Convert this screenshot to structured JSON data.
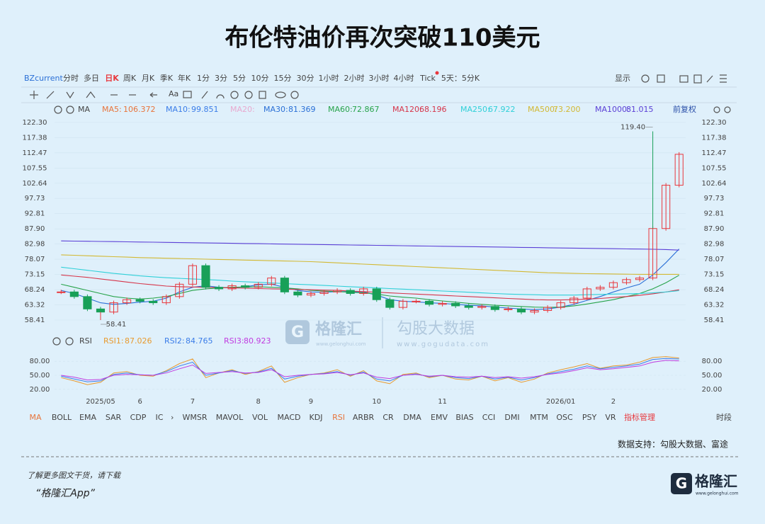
{
  "title": "布伦特油价再次突破110美元",
  "toolbar": {
    "symbol": "BZcurrent",
    "periods": [
      "分时",
      "多日",
      "日K",
      "周K",
      "月K",
      "季K",
      "年K",
      "1分",
      "3分",
      "5分",
      "10分",
      "15分",
      "30分",
      "1小时",
      "2小时",
      "3小时",
      "4小时",
      "Tick",
      "5天：5分K"
    ],
    "display": "显示",
    "font_button": "Aa"
  },
  "legend_bar": {
    "indicator": "MA",
    "adjust": "前复权"
  },
  "chart_data": [
    {
      "type": "candlestick",
      "ylim": [
        52,
        124.1
      ],
      "yticks": [
        58.41,
        63.32,
        68.24,
        73.15,
        78.07,
        82.98,
        {
          "value": 87.9,
          "label": "87.90"
        },
        92.81,
        97.73,
        102.64,
        107.55,
        112.47,
        117.38,
        {
          "value": 122.3,
          "label": "122.30"
        }
      ],
      "grid": true,
      "values": [
        67.5,
        66,
        62,
        61,
        64,
        65,
        64.5,
        64,
        66,
        70,
        76,
        69,
        68.5,
        69.5,
        69,
        70,
        72,
        67.5,
        66.5,
        67,
        67.5,
        68,
        67,
        68.5,
        65,
        62.5,
        64.5,
        64.5,
        63.5,
        63.8,
        63,
        62.5,
        62.8,
        61.8,
        62,
        61,
        61.5,
        62.5,
        64,
        65.5,
        68.5,
        69,
        70.5,
        71.5,
        72,
        88,
        102,
        112
      ],
      "up_color": "#e8383d",
      "down_color": "#18a058",
      "annotations": [
        {
          "index": 45,
          "value": 119.4,
          "label": "119.40"
        },
        {
          "index": 3,
          "value": 58.41,
          "label": "58.41"
        }
      ],
      "series": [
        {
          "name": "MA5:",
          "color": "#e8743b",
          "legend_value": "106.372"
        },
        {
          "name": "MA10:",
          "color": "#3b7de8",
          "legend_value": "99.851"
        },
        {
          "name": "MA20:",
          "color": "#e8a9cf"
        },
        {
          "name": "MA30:",
          "color": "#2a6fd6",
          "legend_value": "81.369",
          "values": [
            68.0,
            67.0,
            65.5,
            64.0,
            63.5,
            63.8,
            64.2,
            64.5,
            65.5,
            67.5,
            69.0,
            69.5,
            69.0,
            68.8,
            69.2,
            69.8,
            70.0,
            69.0,
            68.0,
            67.5,
            67.4,
            67.6,
            67.6,
            67.5,
            66.5,
            65.0,
            64.5,
            64.3,
            64.0,
            63.8,
            63.5,
            63.2,
            63.0,
            62.6,
            62.3,
            62.0,
            61.8,
            62.0,
            62.6,
            63.5,
            64.8,
            66.0,
            67.5,
            68.8,
            70.0,
            73.0,
            77.0,
            81.4
          ]
        },
        {
          "name": "MA60:",
          "color": "#27a34a",
          "legend_value": "72.867",
          "values": [
            70.0,
            69.0,
            68.0,
            67.0,
            66.0,
            65.5,
            65.2,
            65.5,
            66.0,
            67.0,
            68.0,
            68.5,
            68.8,
            69.0,
            69.1,
            69.2,
            69.0,
            68.8,
            68.5,
            68.0,
            67.8,
            67.6,
            67.4,
            67.2,
            66.8,
            66.2,
            65.8,
            65.5,
            65.0,
            64.6,
            64.2,
            63.8,
            63.5,
            63.2,
            63.0,
            62.8,
            62.6,
            62.5,
            62.6,
            63.0,
            63.6,
            64.3,
            65.0,
            66.0,
            67.0,
            68.5,
            70.5,
            72.9
          ]
        },
        {
          "name": "MA120:",
          "color": "#d6354a",
          "legend_value": "68.196",
          "values": [
            73.0,
            72.6,
            72.2,
            71.7,
            71.2,
            70.7,
            70.2,
            69.8,
            69.4,
            69.2,
            69.1,
            69.0,
            68.9,
            68.8,
            68.7,
            68.6,
            68.5,
            68.4,
            68.3,
            68.2,
            68.1,
            68.0,
            67.8,
            67.6,
            67.4,
            67.2,
            67.0,
            66.8,
            66.6,
            66.4,
            66.2,
            66.0,
            65.8,
            65.6,
            65.4,
            65.2,
            65.0,
            64.9,
            64.9,
            65.0,
            65.2,
            65.4,
            65.7,
            66.0,
            66.4,
            66.9,
            67.5,
            68.2
          ]
        },
        {
          "name": "MA250:",
          "color": "#2fd0d8",
          "legend_value": "67.922",
          "values": [
            75.5,
            75.0,
            74.5,
            74.0,
            73.5,
            73.1,
            72.7,
            72.4,
            72.1,
            71.9,
            71.7,
            71.5,
            71.3,
            71.0,
            70.8,
            70.6,
            70.4,
            70.2,
            70.0,
            69.8,
            69.6,
            69.4,
            69.2,
            69.0,
            68.8,
            68.6,
            68.4,
            68.2,
            68.0,
            67.8,
            67.6,
            67.4,
            67.2,
            67.0,
            66.8,
            66.7,
            66.6,
            66.5,
            66.5,
            66.5,
            66.6,
            66.7,
            66.8,
            66.9,
            67.0,
            67.2,
            67.5,
            67.9
          ]
        },
        {
          "name": "MA500:",
          "color": "#d2b832",
          "legend_value": "73.200",
          "values": [
            79.5,
            79.35,
            79.2,
            79.05,
            78.9,
            78.75,
            78.6,
            78.5,
            78.4,
            78.3,
            78.2,
            78.1,
            78.0,
            77.9,
            77.8,
            77.7,
            77.6,
            77.5,
            77.4,
            77.3,
            77.1,
            76.9,
            76.7,
            76.5,
            76.3,
            76.1,
            75.9,
            75.7,
            75.5,
            75.3,
            75.1,
            74.9,
            74.7,
            74.5,
            74.3,
            74.1,
            73.9,
            73.7,
            73.6,
            73.5,
            73.4,
            73.35,
            73.3,
            73.25,
            73.2,
            73.2,
            73.2,
            73.2
          ]
        },
        {
          "name": "MA1000:",
          "color": "#5b3fd6",
          "legend_value": "81.015",
          "values": [
            84.0,
            83.94,
            83.88,
            83.82,
            83.76,
            83.7,
            83.64,
            83.58,
            83.52,
            83.46,
            83.4,
            83.34,
            83.28,
            83.22,
            83.16,
            83.1,
            83.04,
            82.98,
            82.92,
            82.86,
            82.8,
            82.74,
            82.68,
            82.62,
            82.56,
            82.5,
            82.44,
            82.38,
            82.32,
            82.26,
            82.2,
            82.14,
            82.08,
            82.02,
            81.96,
            81.9,
            81.84,
            81.78,
            81.72,
            81.66,
            81.6,
            81.54,
            81.48,
            81.42,
            81.36,
            81.3,
            81.2,
            81.02
          ]
        }
      ]
    },
    {
      "type": "line",
      "indicator": "RSI",
      "ylim": [
        0,
        100
      ],
      "yticks": [
        {
          "value": 20,
          "label": "20.00"
        },
        {
          "value": 50,
          "label": "50.00"
        },
        {
          "value": 80,
          "label": "80.00"
        }
      ],
      "grid": true,
      "categories": [
        null,
        null,
        null,
        "2025/05",
        null,
        null,
        "6",
        null,
        null,
        null,
        "7",
        null,
        null,
        null,
        null,
        "8",
        null,
        null,
        null,
        "9",
        null,
        null,
        null,
        null,
        "10",
        null,
        null,
        null,
        null,
        "11",
        null,
        null,
        null,
        null,
        null,
        null,
        null,
        null,
        "2026/01",
        null,
        null,
        null,
        "2",
        null,
        null,
        null,
        null,
        null
      ],
      "series": [
        {
          "name": "RSI1:",
          "color": "#e89a2e",
          "legend_value": "87.026",
          "values": [
            45,
            38,
            30,
            35,
            55,
            58,
            50,
            48,
            60,
            75,
            85,
            45,
            55,
            62,
            52,
            58,
            70,
            35,
            45,
            52,
            55,
            62,
            48,
            60,
            38,
            32,
            52,
            55,
            45,
            50,
            42,
            40,
            48,
            38,
            45,
            35,
            42,
            55,
            62,
            68,
            75,
            65,
            70,
            72,
            78,
            88,
            90,
            87
          ]
        },
        {
          "name": "RSI2:",
          "color": "#3b7de8",
          "legend_value": "84.765",
          "values": [
            48,
            42,
            36,
            38,
            52,
            55,
            51,
            50,
            58,
            70,
            78,
            50,
            55,
            60,
            54,
            57,
            65,
            42,
            48,
            52,
            54,
            58,
            50,
            57,
            42,
            38,
            50,
            53,
            47,
            50,
            45,
            43,
            48,
            42,
            46,
            40,
            45,
            53,
            58,
            63,
            70,
            64,
            67,
            70,
            74,
            84,
            86,
            84.8
          ]
        },
        {
          "name": "RSI3:",
          "color": "#c03be0",
          "legend_value": "80.923",
          "values": [
            50,
            46,
            40,
            41,
            50,
            52,
            51,
            50,
            55,
            64,
            72,
            54,
            56,
            58,
            55,
            56,
            62,
            47,
            50,
            52,
            53,
            56,
            51,
            55,
            46,
            43,
            50,
            52,
            48,
            50,
            47,
            46,
            48,
            45,
            47,
            44,
            47,
            52,
            55,
            60,
            66,
            62,
            64,
            67,
            70,
            78,
            82,
            80.9
          ]
        }
      ]
    }
  ],
  "indicator_tabs": [
    "MA",
    "BOLL",
    "EMA",
    "SAR",
    "CDP",
    "IC",
    "WMSR",
    "MAVOL",
    "VOL",
    "MACD",
    "KDJ",
    "RSI",
    "ARBR",
    "CR",
    "DMA",
    "EMV",
    "BIAS",
    "CCI",
    "DMI",
    "MTM",
    "OSC",
    "PSY",
    "VR",
    "指标管理"
  ],
  "session": "时段",
  "watermark": {
    "brand": "格隆汇",
    "brand_url": "www.gelonghui.com",
    "partner": "勾股大数据",
    "partner_url": "www.gogudata.com"
  },
  "source": "数据支持：勾股大数据、富途",
  "footer": {
    "line1": "了解更多图文干货，请下载",
    "line2": "“格隆汇App”",
    "logo": "格隆汇",
    "logo_url": "www.gelonghui.com"
  }
}
